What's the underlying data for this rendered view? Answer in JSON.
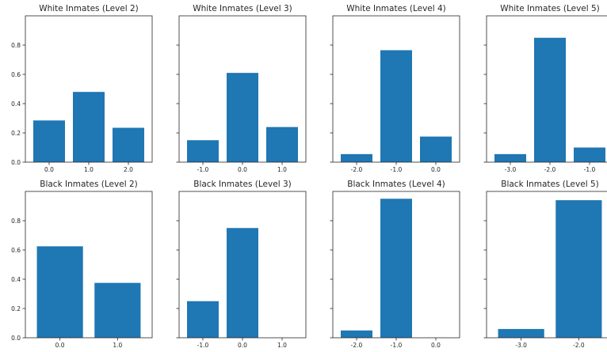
{
  "chart_data": [
    {
      "type": "bar",
      "title": "White Inmates (Level 2)",
      "categories": [
        "0.0",
        "1.0",
        "2.0"
      ],
      "values": [
        0.285,
        0.48,
        0.235
      ],
      "ylim": [
        0,
        1.0
      ],
      "yticks": [
        "0.0",
        "0.2",
        "0.4",
        "0.6",
        "0.8"
      ],
      "color": "#1f77b4"
    },
    {
      "type": "bar",
      "title": "White Inmates (Level 3)",
      "categories": [
        "-1.0",
        "0.0",
        "1.0"
      ],
      "values": [
        0.15,
        0.61,
        0.24
      ],
      "ylim": [
        0,
        1.0
      ],
      "color": "#1f77b4"
    },
    {
      "type": "bar",
      "title": "White Inmates (Level 4)",
      "categories": [
        "-2.0",
        "-1.0",
        "0.0"
      ],
      "values": [
        0.055,
        0.765,
        0.175
      ],
      "ylim": [
        0,
        1.0
      ],
      "color": "#1f77b4"
    },
    {
      "type": "bar",
      "title": "White Inmates (Level 5)",
      "categories": [
        "-3.0",
        "-2.0",
        "-1.0"
      ],
      "values": [
        0.055,
        0.85,
        0.1
      ],
      "ylim": [
        0,
        1.0
      ],
      "color": "#1f77b4"
    },
    {
      "type": "bar",
      "title": "Black Inmates (Level 2)",
      "categories": [
        "0.0",
        "1.0"
      ],
      "values": [
        0.625,
        0.375
      ],
      "ylim": [
        0,
        1.0
      ],
      "yticks": [
        "0.0",
        "0.2",
        "0.4",
        "0.6",
        "0.8"
      ],
      "color": "#1f77b4"
    },
    {
      "type": "bar",
      "title": "Black Inmates (Level 3)",
      "categories": [
        "-1.0",
        "0.0",
        "1.0"
      ],
      "values": [
        0.25,
        0.75,
        0.0
      ],
      "ylim": [
        0,
        1.0
      ],
      "color": "#1f77b4"
    },
    {
      "type": "bar",
      "title": "Black Inmates (Level 4)",
      "categories": [
        "-2.0",
        "-1.0",
        "0.0"
      ],
      "values": [
        0.05,
        0.95,
        0.0
      ],
      "ylim": [
        0,
        1.0
      ],
      "color": "#1f77b4"
    },
    {
      "type": "bar",
      "title": "Black Inmates (Level 5)",
      "categories": [
        "-3.0",
        "-2.0"
      ],
      "values": [
        0.06,
        0.94
      ],
      "ylim": [
        0,
        1.0
      ],
      "color": "#1f77b4"
    }
  ]
}
